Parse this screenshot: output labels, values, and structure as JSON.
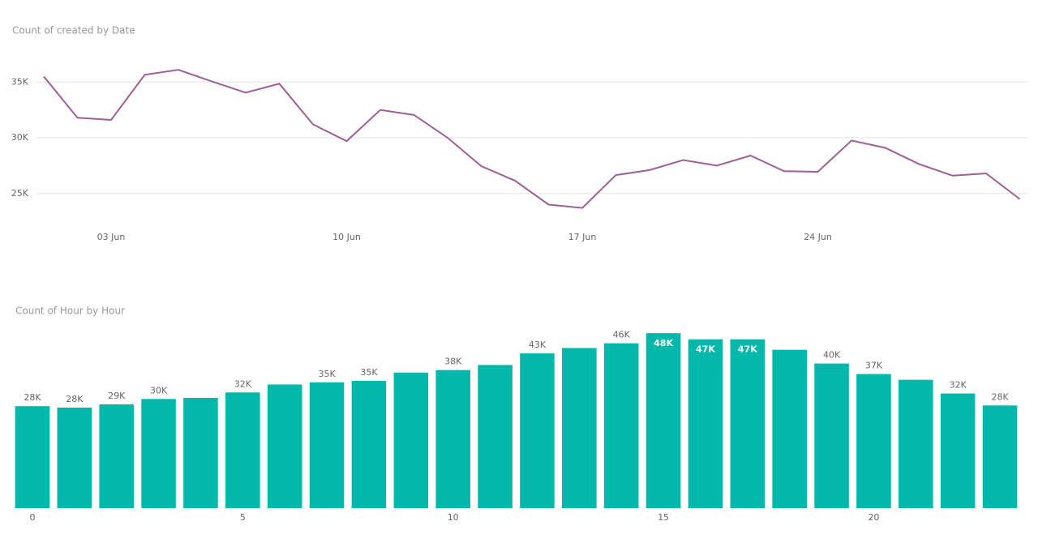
{
  "chart_data": [
    {
      "type": "line",
      "title": "Count of created by Date",
      "color": "#9c5f97",
      "categories": [
        null,
        null,
        "03 Jun",
        null,
        null,
        null,
        null,
        null,
        null,
        "10 Jun",
        null,
        null,
        null,
        null,
        null,
        null,
        "17 Jun",
        null,
        null,
        null,
        null,
        null,
        null,
        "24 Jun",
        null,
        null,
        null,
        null,
        null,
        null
      ],
      "values": [
        35500,
        31800,
        31600,
        35650,
        36100,
        35050,
        34050,
        34850,
        31200,
        29700,
        32500,
        32050,
        30000,
        27450,
        26150,
        24000,
        23700,
        26650,
        27100,
        28000,
        27500,
        28400,
        27000,
        26950,
        29750,
        29100,
        27650,
        26600,
        26800,
        24500
      ],
      "ylim": [
        22000,
        38000
      ],
      "yticks": [
        {
          "value": 25000,
          "label": "25K"
        },
        {
          "value": 30000,
          "label": "30K"
        },
        {
          "value": 35000,
          "label": "35K"
        }
      ],
      "grid": true
    },
    {
      "type": "bar",
      "title": "Count of Hour by Hour",
      "color": "#01b8aa",
      "x": [
        0,
        1,
        2,
        3,
        4,
        5,
        6,
        7,
        8,
        9,
        10,
        11,
        12,
        13,
        14,
        15,
        16,
        17,
        18,
        19,
        20,
        21,
        22,
        23
      ],
      "values": [
        28200,
        27800,
        28700,
        30200,
        30500,
        32000,
        34200,
        34800,
        35200,
        37500,
        38200,
        39600,
        42800,
        44300,
        45600,
        48400,
        46700,
        46700,
        43800,
        40000,
        37100,
        35500,
        31700,
        28400
      ],
      "value_labels": [
        "28K",
        "28K",
        "29K",
        "30K",
        null,
        "32K",
        null,
        "35K",
        "35K",
        null,
        "38K",
        null,
        "43K",
        null,
        "46K",
        "48K",
        "47K",
        "47K",
        null,
        "40K",
        "37K",
        null,
        "32K",
        "28K"
      ],
      "xlim": [
        -0.5,
        23.5
      ],
      "xticks": [
        0,
        5,
        10,
        15,
        20
      ],
      "ylim": [
        0,
        50000
      ]
    }
  ]
}
